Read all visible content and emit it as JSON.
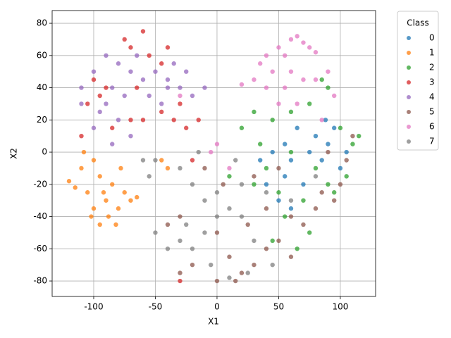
{
  "chart_data": {
    "type": "scatter",
    "xlabel": "X1",
    "ylabel": "X2",
    "xlim": [
      -133.7,
      128.6
    ],
    "ylim": [
      -89.6,
      87.9
    ],
    "xticks": [
      -100,
      -50,
      0,
      50,
      100
    ],
    "yticks": [
      -80,
      -60,
      -40,
      -20,
      0,
      20,
      40,
      60,
      80
    ],
    "grid": true,
    "legend_title": "Class",
    "legend_position": "outside-right",
    "series": [
      {
        "name": "0",
        "color": "#1f77b4",
        "x": [
          45,
          55,
          60,
          80,
          90,
          100,
          70,
          50,
          40,
          65,
          85,
          95,
          75,
          55,
          35,
          60,
          105,
          88
        ],
        "y": [
          0,
          5,
          -5,
          10,
          5,
          -10,
          -20,
          -30,
          -20,
          15,
          -5,
          15,
          0,
          -15,
          -5,
          -35,
          0,
          20
        ]
      },
      {
        "name": "1",
        "color": "#ff7f0e",
        "x": [
          -120,
          -110,
          -105,
          -100,
          -95,
          -90,
          -85,
          -80,
          -75,
          -70,
          -65,
          -100,
          -108,
          -95,
          -88,
          -78,
          -115,
          -92,
          -40,
          -45,
          -82,
          -102
        ],
        "y": [
          -18,
          -10,
          -25,
          -35,
          -45,
          -30,
          -20,
          -35,
          -25,
          -30,
          -28,
          -5,
          0,
          -15,
          -40,
          -10,
          -22,
          -25,
          -10,
          -5,
          -45,
          -40
        ]
      },
      {
        "name": "2",
        "color": "#2ca02c",
        "x": [
          20,
          30,
          45,
          60,
          75,
          90,
          85,
          100,
          110,
          105,
          95,
          80,
          70,
          55,
          45,
          65,
          40,
          30,
          10,
          60,
          50,
          75,
          90,
          115,
          35
        ],
        "y": [
          15,
          25,
          20,
          25,
          30,
          40,
          45,
          15,
          5,
          -15,
          -25,
          -10,
          -30,
          -40,
          -55,
          -60,
          -10,
          -20,
          -15,
          0,
          -25,
          -50,
          -20,
          10,
          5
        ]
      },
      {
        "name": "3",
        "color": "#d62728",
        "x": [
          -60,
          -70,
          -75,
          -40,
          -45,
          -100,
          -95,
          -105,
          -85,
          -70,
          -60,
          -45,
          -35,
          -25,
          -30,
          -15,
          -55,
          -90,
          -110,
          -65,
          -20,
          -30
        ],
        "y": [
          75,
          65,
          70,
          65,
          55,
          45,
          35,
          30,
          15,
          20,
          20,
          25,
          20,
          15,
          30,
          20,
          60,
          40,
          10,
          40,
          -5,
          -80
        ]
      },
      {
        "name": "4",
        "color": "#9467bd",
        "x": [
          -110,
          -100,
          -90,
          -80,
          -70,
          -60,
          -50,
          -40,
          -35,
          -30,
          -20,
          -10,
          -85,
          -75,
          -95,
          -80,
          -70,
          -55,
          -45,
          -65,
          -100,
          -85,
          -40,
          -25,
          -110,
          -90
        ],
        "y": [
          30,
          50,
          60,
          55,
          50,
          45,
          50,
          45,
          55,
          40,
          35,
          40,
          40,
          35,
          25,
          20,
          10,
          35,
          30,
          60,
          15,
          5,
          40,
          50,
          40,
          30
        ]
      },
      {
        "name": "5",
        "color": "#8c564b",
        "x": [
          -40,
          -30,
          -20,
          0,
          10,
          20,
          30,
          40,
          50,
          60,
          40,
          60,
          80,
          95,
          100,
          105,
          110,
          85,
          70,
          25,
          0,
          15,
          -10,
          5,
          50,
          30,
          90,
          -30
        ],
        "y": [
          -45,
          -75,
          -70,
          -50,
          -65,
          -75,
          -70,
          -60,
          -55,
          -65,
          -35,
          -40,
          -35,
          -30,
          -20,
          -5,
          10,
          -25,
          -45,
          -45,
          -80,
          -80,
          -10,
          -20,
          -10,
          -15,
          0,
          -40
        ]
      },
      {
        "name": "6",
        "color": "#e377c2",
        "x": [
          20,
          30,
          35,
          40,
          45,
          50,
          55,
          60,
          65,
          70,
          75,
          80,
          60,
          70,
          80,
          55,
          40,
          50,
          65,
          85,
          90,
          0,
          -5,
          -30,
          10,
          95
        ],
        "y": [
          42,
          45,
          55,
          60,
          50,
          65,
          60,
          70,
          72,
          68,
          65,
          62,
          50,
          45,
          45,
          40,
          40,
          30,
          30,
          20,
          50,
          5,
          0,
          35,
          -10,
          35
        ]
      },
      {
        "name": "7",
        "color": "#7f7f7f",
        "x": [
          -50,
          -40,
          -30,
          -20,
          -10,
          0,
          10,
          20,
          30,
          25,
          10,
          -5,
          -25,
          -10,
          -20,
          -30,
          -50,
          -55,
          -60,
          20,
          40,
          0,
          15,
          60,
          80,
          45,
          -15
        ],
        "y": [
          -50,
          -60,
          -55,
          -60,
          -50,
          -40,
          -35,
          -40,
          -55,
          -75,
          -78,
          -70,
          -45,
          -30,
          -20,
          -10,
          -5,
          -15,
          -5,
          -20,
          -25,
          -25,
          -5,
          -30,
          -15,
          -70,
          0
        ]
      }
    ]
  }
}
